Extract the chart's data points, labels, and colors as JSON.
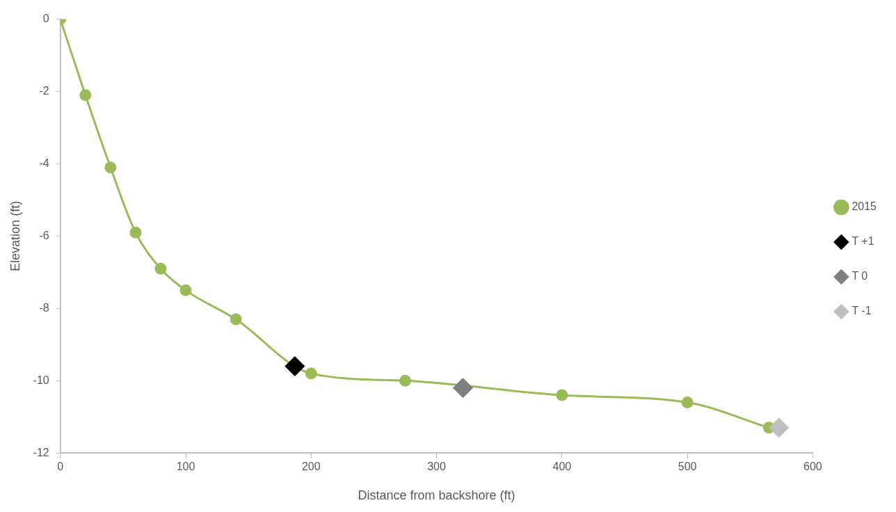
{
  "chart_data": {
    "type": "line",
    "xlabel": "Distance from backshore (ft)",
    "ylabel": "Elevation (ft)",
    "xlim": [
      0,
      600
    ],
    "xticks": [
      0,
      100,
      200,
      300,
      400,
      500,
      600
    ],
    "ylim": [
      -12,
      0
    ],
    "yticks": [
      -12,
      -10,
      -8,
      -6,
      -4,
      -2,
      0
    ],
    "grid": false,
    "legend": "right",
    "marker": "circle",
    "series": [
      {
        "name": "2015",
        "color": "#9bbb59",
        "x": [
          0,
          20,
          40,
          60,
          80,
          100,
          140,
          200,
          275,
          400,
          500,
          565
        ],
        "values": [
          0,
          -2.1,
          -4.1,
          -5.9,
          -6.9,
          -7.5,
          -8.3,
          -9.8,
          -10,
          -10.4,
          -10.6,
          -11.3
        ]
      },
      {
        "name": "T +1",
        "type": "scatter",
        "marker": "diamond",
        "color": "#000000",
        "x": [
          187
        ],
        "values": [
          -9.6
        ]
      },
      {
        "name": "T 0",
        "type": "scatter",
        "marker": "diamond",
        "color": "#7f7f7f",
        "x": [
          321
        ],
        "values": [
          -10.2
        ]
      },
      {
        "name": "T -1",
        "type": "scatter",
        "marker": "diamond",
        "color": "#bfbfbf",
        "x": [
          573
        ],
        "values": [
          -11.3
        ]
      }
    ]
  }
}
